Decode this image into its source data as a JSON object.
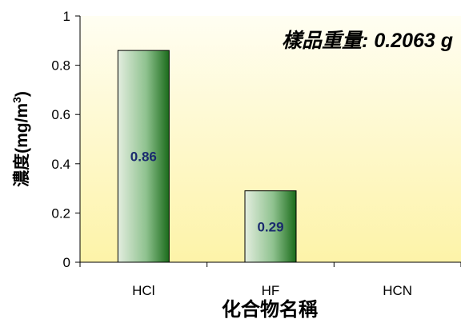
{
  "chart_data": {
    "type": "bar",
    "categories": [
      "HCl",
      "HF",
      "HCN"
    ],
    "values": [
      0.86,
      0.29,
      null
    ],
    "data_labels": [
      "0.86",
      "0.29",
      ""
    ],
    "ylabel": "濃度(mg/m3)",
    "ylabel_main": "濃度(mg/m",
    "ylabel_sup": "3",
    "ylabel_close": ")",
    "xlabel": "化合物名稱",
    "annotation": "樣品重量: 0.2063 g",
    "ylim": [
      0,
      1
    ],
    "yticks": [
      0,
      0.2,
      0.4,
      0.6,
      0.8,
      1
    ],
    "ytick_labels": [
      "0",
      "0.2",
      "0.4",
      "0.6",
      "0.8",
      "1"
    ],
    "grid": false,
    "colors": {
      "bar_light": "#e3eddf",
      "bar_mid": "#8fc28f",
      "bar_dark": "#1a6b1a",
      "bar_stroke": "#000000",
      "plot_bg_top": "#fffef2",
      "plot_bg_bottom": "#fdf3a8",
      "data_label": "#1a2a6e",
      "axis": "#000000"
    }
  }
}
